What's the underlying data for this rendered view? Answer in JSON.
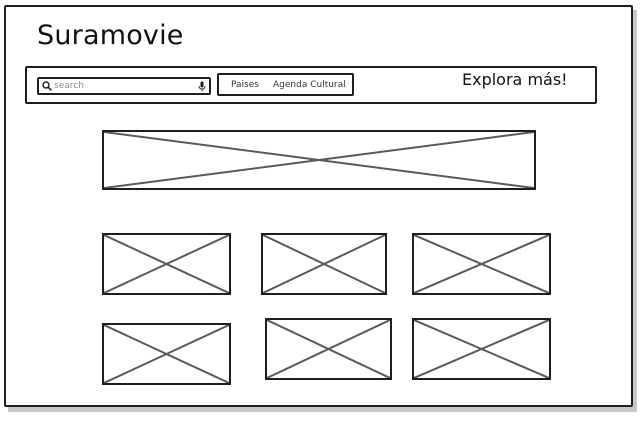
{
  "header": {
    "title": "Suramovie"
  },
  "navbar": {
    "search": {
      "placeholder": "search",
      "value": "",
      "icon": "search-icon",
      "mic_icon": "microphone-icon"
    },
    "links": [
      {
        "label": "Paises"
      },
      {
        "label": "Agenda Cultural"
      }
    ],
    "explore_label": "Explora más!"
  },
  "main": {
    "banner": {
      "type": "image-placeholder"
    },
    "grid_rows": [
      {
        "items": [
          {
            "type": "image-placeholder"
          },
          {
            "type": "image-placeholder"
          },
          {
            "type": "image-placeholder"
          }
        ]
      },
      {
        "items": [
          {
            "type": "image-placeholder"
          },
          {
            "type": "image-placeholder"
          },
          {
            "type": "image-placeholder"
          }
        ]
      }
    ]
  },
  "colors": {
    "stroke": "#1e1e1e",
    "placeholder_cross": "#5a5a5a",
    "background": "#ffffff"
  }
}
